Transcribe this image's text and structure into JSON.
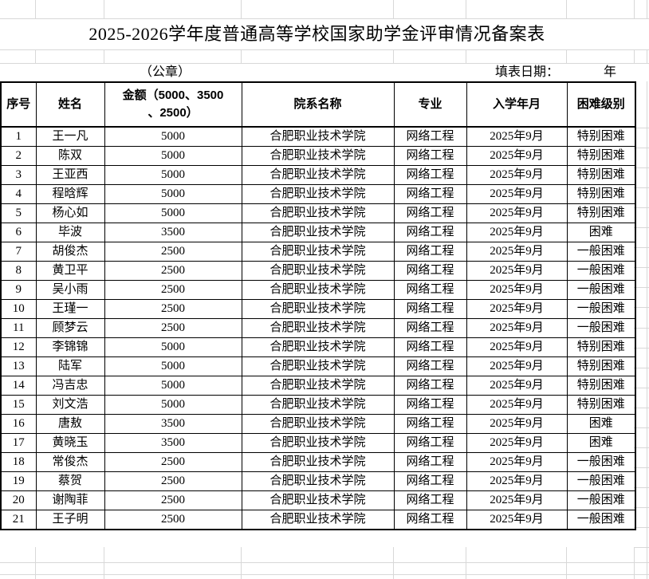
{
  "title": "2025-2026学年度普通高等学校国家助学金评审情况备案表",
  "stamp_label": "（公章）",
  "fill_date_label": "填表日期：",
  "fill_date_year_suffix": "年",
  "colors": {
    "border": "#000000",
    "gridline": "#d8d8d8",
    "text": "#000000",
    "background": "#ffffff"
  },
  "table": {
    "headers": [
      "序号",
      "姓名",
      "金额（5000、3500\n、2500）",
      "院系名称",
      "专业",
      "入学年月",
      "困难级别"
    ],
    "rows": [
      {
        "no": "1",
        "name": "王一凡",
        "amount": "5000",
        "dept": "合肥职业技术学院",
        "major": "网络工程",
        "enroll": "2025年9月",
        "level": "特别困难"
      },
      {
        "no": "2",
        "name": "陈双",
        "amount": "5000",
        "dept": "合肥职业技术学院",
        "major": "网络工程",
        "enroll": "2025年9月",
        "level": "特别困难"
      },
      {
        "no": "3",
        "name": "王亚西",
        "amount": "5000",
        "dept": "合肥职业技术学院",
        "major": "网络工程",
        "enroll": "2025年9月",
        "level": "特别困难"
      },
      {
        "no": "4",
        "name": "程晗辉",
        "amount": "5000",
        "dept": "合肥职业技术学院",
        "major": "网络工程",
        "enroll": "2025年9月",
        "level": "特别困难"
      },
      {
        "no": "5",
        "name": "杨心如",
        "amount": "5000",
        "dept": "合肥职业技术学院",
        "major": "网络工程",
        "enroll": "2025年9月",
        "level": "特别困难"
      },
      {
        "no": "6",
        "name": "毕波",
        "amount": "3500",
        "dept": "合肥职业技术学院",
        "major": "网络工程",
        "enroll": "2025年9月",
        "level": "困难"
      },
      {
        "no": "7",
        "name": "胡俊杰",
        "amount": "2500",
        "dept": "合肥职业技术学院",
        "major": "网络工程",
        "enroll": "2025年9月",
        "level": "一般困难"
      },
      {
        "no": "8",
        "name": "黄卫平",
        "amount": "2500",
        "dept": "合肥职业技术学院",
        "major": "网络工程",
        "enroll": "2025年9月",
        "level": "一般困难"
      },
      {
        "no": "9",
        "name": "吴小雨",
        "amount": "2500",
        "dept": "合肥职业技术学院",
        "major": "网络工程",
        "enroll": "2025年9月",
        "level": "一般困难"
      },
      {
        "no": "10",
        "name": "王瑾一",
        "amount": "2500",
        "dept": "合肥职业技术学院",
        "major": "网络工程",
        "enroll": "2025年9月",
        "level": "一般困难"
      },
      {
        "no": "11",
        "name": "顾梦云",
        "amount": "2500",
        "dept": "合肥职业技术学院",
        "major": "网络工程",
        "enroll": "2025年9月",
        "level": "一般困难"
      },
      {
        "no": "12",
        "name": "李锦锦",
        "amount": "5000",
        "dept": "合肥职业技术学院",
        "major": "网络工程",
        "enroll": "2025年9月",
        "level": "特别困难"
      },
      {
        "no": "13",
        "name": "陆军",
        "amount": "5000",
        "dept": "合肥职业技术学院",
        "major": "网络工程",
        "enroll": "2025年9月",
        "level": "特别困难"
      },
      {
        "no": "14",
        "name": "冯吉忠",
        "amount": "5000",
        "dept": "合肥职业技术学院",
        "major": "网络工程",
        "enroll": "2025年9月",
        "level": "特别困难"
      },
      {
        "no": "15",
        "name": "刘文浩",
        "amount": "5000",
        "dept": "合肥职业技术学院",
        "major": "网络工程",
        "enroll": "2025年9月",
        "level": "特别困难"
      },
      {
        "no": "16",
        "name": "唐敖",
        "amount": "3500",
        "dept": "合肥职业技术学院",
        "major": "网络工程",
        "enroll": "2025年9月",
        "level": "困难"
      },
      {
        "no": "17",
        "name": "黄晓玉",
        "amount": "3500",
        "dept": "合肥职业技术学院",
        "major": "网络工程",
        "enroll": "2025年9月",
        "level": "困难"
      },
      {
        "no": "18",
        "name": "常俊杰",
        "amount": "2500",
        "dept": "合肥职业技术学院",
        "major": "网络工程",
        "enroll": "2025年9月",
        "level": "一般困难"
      },
      {
        "no": "19",
        "name": "蔡贺",
        "amount": "2500",
        "dept": "合肥职业技术学院",
        "major": "网络工程",
        "enroll": "2025年9月",
        "level": "一般困难"
      },
      {
        "no": "20",
        "name": "谢陶菲",
        "amount": "2500",
        "dept": "合肥职业技术学院",
        "major": "网络工程",
        "enroll": "2025年9月",
        "level": "一般困难"
      },
      {
        "no": "21",
        "name": "王子明",
        "amount": "2500",
        "dept": "合肥职业技术学院",
        "major": "网络工程",
        "enroll": "2025年9月",
        "level": "一般困难"
      }
    ]
  }
}
